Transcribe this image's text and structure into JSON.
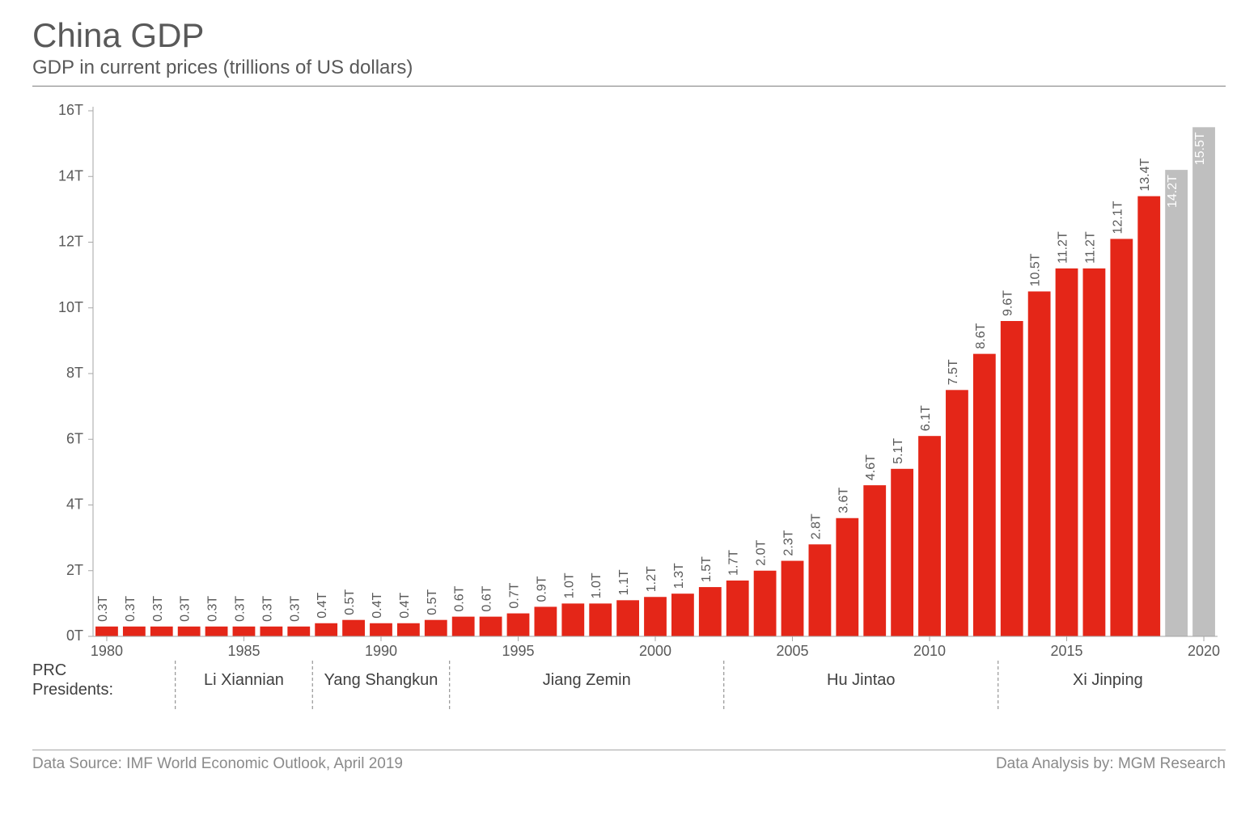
{
  "header": {
    "title": "China GDP",
    "subtitle": "GDP in current prices (trillions of US dollars)"
  },
  "chart": {
    "type": "bar",
    "background_color": "#ffffff",
    "axis_color": "#a6a6a6",
    "tick_color": "#a6a6a6",
    "label_color": "#595959",
    "bar_label_fontsize": 16,
    "axis_label_fontsize": 18,
    "y": {
      "min": 0,
      "max": 16,
      "step": 2,
      "suffix": "T"
    },
    "x_labels": [
      "1980",
      "1985",
      "1990",
      "1995",
      "2000",
      "2005",
      "2010",
      "2015",
      "2020"
    ],
    "bars": [
      {
        "year": 1980,
        "value": 0.3,
        "label": "0.3T",
        "color": "#e42618"
      },
      {
        "year": 1981,
        "value": 0.3,
        "label": "0.3T",
        "color": "#e42618"
      },
      {
        "year": 1982,
        "value": 0.3,
        "label": "0.3T",
        "color": "#e42618"
      },
      {
        "year": 1983,
        "value": 0.3,
        "label": "0.3T",
        "color": "#e42618"
      },
      {
        "year": 1984,
        "value": 0.3,
        "label": "0.3T",
        "color": "#e42618"
      },
      {
        "year": 1985,
        "value": 0.3,
        "label": "0.3T",
        "color": "#e42618"
      },
      {
        "year": 1986,
        "value": 0.3,
        "label": "0.3T",
        "color": "#e42618"
      },
      {
        "year": 1987,
        "value": 0.3,
        "label": "0.3T",
        "color": "#e42618"
      },
      {
        "year": 1988,
        "value": 0.4,
        "label": "0.4T",
        "color": "#e42618"
      },
      {
        "year": 1989,
        "value": 0.5,
        "label": "0.5T",
        "color": "#e42618"
      },
      {
        "year": 1990,
        "value": 0.4,
        "label": "0.4T",
        "color": "#e42618"
      },
      {
        "year": 1991,
        "value": 0.4,
        "label": "0.4T",
        "color": "#e42618"
      },
      {
        "year": 1992,
        "value": 0.5,
        "label": "0.5T",
        "color": "#e42618"
      },
      {
        "year": 1993,
        "value": 0.6,
        "label": "0.6T",
        "color": "#e42618"
      },
      {
        "year": 1994,
        "value": 0.6,
        "label": "0.6T",
        "color": "#e42618"
      },
      {
        "year": 1995,
        "value": 0.7,
        "label": "0.7T",
        "color": "#e42618"
      },
      {
        "year": 1996,
        "value": 0.9,
        "label": "0.9T",
        "color": "#e42618"
      },
      {
        "year": 1997,
        "value": 1.0,
        "label": "1.0T",
        "color": "#e42618"
      },
      {
        "year": 1998,
        "value": 1.0,
        "label": "1.0T",
        "color": "#e42618"
      },
      {
        "year": 1999,
        "value": 1.1,
        "label": "1.1T",
        "color": "#e42618"
      },
      {
        "year": 2000,
        "value": 1.2,
        "label": "1.2T",
        "color": "#e42618"
      },
      {
        "year": 2001,
        "value": 1.3,
        "label": "1.3T",
        "color": "#e42618"
      },
      {
        "year": 2002,
        "value": 1.5,
        "label": "1.5T",
        "color": "#e42618"
      },
      {
        "year": 2003,
        "value": 1.7,
        "label": "1.7T",
        "color": "#e42618"
      },
      {
        "year": 2004,
        "value": 2.0,
        "label": "2.0T",
        "color": "#e42618"
      },
      {
        "year": 2005,
        "value": 2.3,
        "label": "2.3T",
        "color": "#e42618"
      },
      {
        "year": 2006,
        "value": 2.8,
        "label": "2.8T",
        "color": "#e42618"
      },
      {
        "year": 2007,
        "value": 3.6,
        "label": "3.6T",
        "color": "#e42618"
      },
      {
        "year": 2008,
        "value": 4.6,
        "label": "4.6T",
        "color": "#e42618"
      },
      {
        "year": 2009,
        "value": 5.1,
        "label": "5.1T",
        "color": "#e42618"
      },
      {
        "year": 2010,
        "value": 6.1,
        "label": "6.1T",
        "color": "#e42618"
      },
      {
        "year": 2011,
        "value": 7.5,
        "label": "7.5T",
        "color": "#e42618"
      },
      {
        "year": 2012,
        "value": 8.6,
        "label": "8.6T",
        "color": "#e42618"
      },
      {
        "year": 2013,
        "value": 9.6,
        "label": "9.6T",
        "color": "#e42618"
      },
      {
        "year": 2014,
        "value": 10.5,
        "label": "10.5T",
        "color": "#e42618"
      },
      {
        "year": 2015,
        "value": 11.2,
        "label": "11.2T",
        "color": "#e42618"
      },
      {
        "year": 2016,
        "value": 11.2,
        "label": "11.2T",
        "color": "#e42618"
      },
      {
        "year": 2017,
        "value": 12.1,
        "label": "12.1T",
        "color": "#e42618"
      },
      {
        "year": 2018,
        "value": 13.4,
        "label": "13.4T",
        "color": "#e42618"
      },
      {
        "year": 2019,
        "value": 14.2,
        "label": "14.2T",
        "color": "#bfbfbf",
        "label_color": "#ffffff",
        "label_inside": true
      },
      {
        "year": 2020,
        "value": 15.5,
        "label": "15.5T",
        "color": "#bfbfbf",
        "label_color": "#ffffff",
        "label_inside": true
      }
    ],
    "presidents": {
      "title": "PRC\nPresidents:",
      "segments": [
        {
          "start_year": 1983,
          "end_year": 1988,
          "label": "Li Xiannian"
        },
        {
          "start_year": 1988,
          "end_year": 1993,
          "label": "Yang Shangkun"
        },
        {
          "start_year": 1993,
          "end_year": 2003,
          "label": "Jiang Zemin"
        },
        {
          "start_year": 2003,
          "end_year": 2013,
          "label": "Hu Jintao"
        },
        {
          "start_year": 2013,
          "end_year": 2021,
          "label": "Xi Jinping"
        }
      ],
      "divider_color": "#808080",
      "label_fontsize": 20,
      "label_color": "#404040"
    }
  },
  "footer": {
    "source": "Data Source: IMF World Economic Outlook, April 2019",
    "analysis": "Data Analysis by: MGM Research"
  }
}
